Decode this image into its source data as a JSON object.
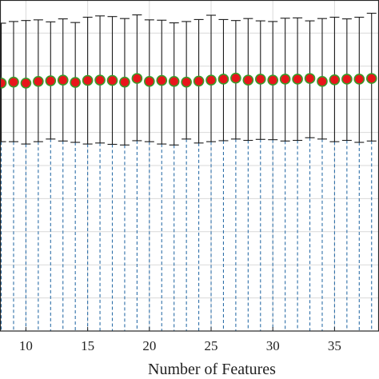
{
  "chart_data": {
    "type": "scatter",
    "xlabel": "Number of Features",
    "ylabel": "",
    "title": "",
    "xlim": [
      7.9,
      38.6
    ],
    "ylim": [
      0,
      1
    ],
    "grid": true,
    "x_ticks": [
      10,
      15,
      20,
      25,
      30,
      35
    ],
    "x_tick_labels": [
      "10",
      "15",
      "20",
      "25",
      "30",
      "35"
    ],
    "series": [
      {
        "x": [
          8,
          9,
          10,
          11,
          12,
          13,
          14,
          15,
          16,
          17,
          18,
          19,
          20,
          21,
          22,
          23,
          24,
          25,
          26,
          27,
          28,
          29,
          30,
          31,
          32,
          33,
          34,
          35,
          36,
          37,
          38
        ],
        "mean": [
          0.749,
          0.752,
          0.749,
          0.754,
          0.756,
          0.758,
          0.751,
          0.757,
          0.758,
          0.757,
          0.752,
          0.763,
          0.754,
          0.757,
          0.754,
          0.752,
          0.755,
          0.758,
          0.761,
          0.764,
          0.758,
          0.761,
          0.758,
          0.761,
          0.761,
          0.763,
          0.754,
          0.759,
          0.761,
          0.761,
          0.763
        ],
        "upper": [
          0.93,
          0.935,
          0.938,
          0.94,
          0.934,
          0.943,
          0.932,
          0.948,
          0.952,
          0.95,
          0.944,
          0.955,
          0.94,
          0.939,
          0.931,
          0.935,
          0.941,
          0.954,
          0.941,
          0.938,
          0.944,
          0.937,
          0.935,
          0.945,
          0.946,
          0.937,
          0.944,
          0.948,
          0.943,
          0.948,
          0.96
        ],
        "lower": [
          0.572,
          0.572,
          0.565,
          0.572,
          0.58,
          0.574,
          0.57,
          0.565,
          0.568,
          0.564,
          0.562,
          0.575,
          0.572,
          0.565,
          0.562,
          0.58,
          0.568,
          0.572,
          0.575,
          0.58,
          0.576,
          0.579,
          0.578,
          0.574,
          0.576,
          0.584,
          0.58,
          0.572,
          0.576,
          0.57,
          0.574
        ]
      }
    ]
  },
  "colors": {
    "marker_fill": "#e8151b",
    "marker_edge": "#3a9a2a",
    "errorbar": "#1a1a1a",
    "stem": "#2e6fa8",
    "grid": "#d9d9d9",
    "axis": "#262626"
  }
}
